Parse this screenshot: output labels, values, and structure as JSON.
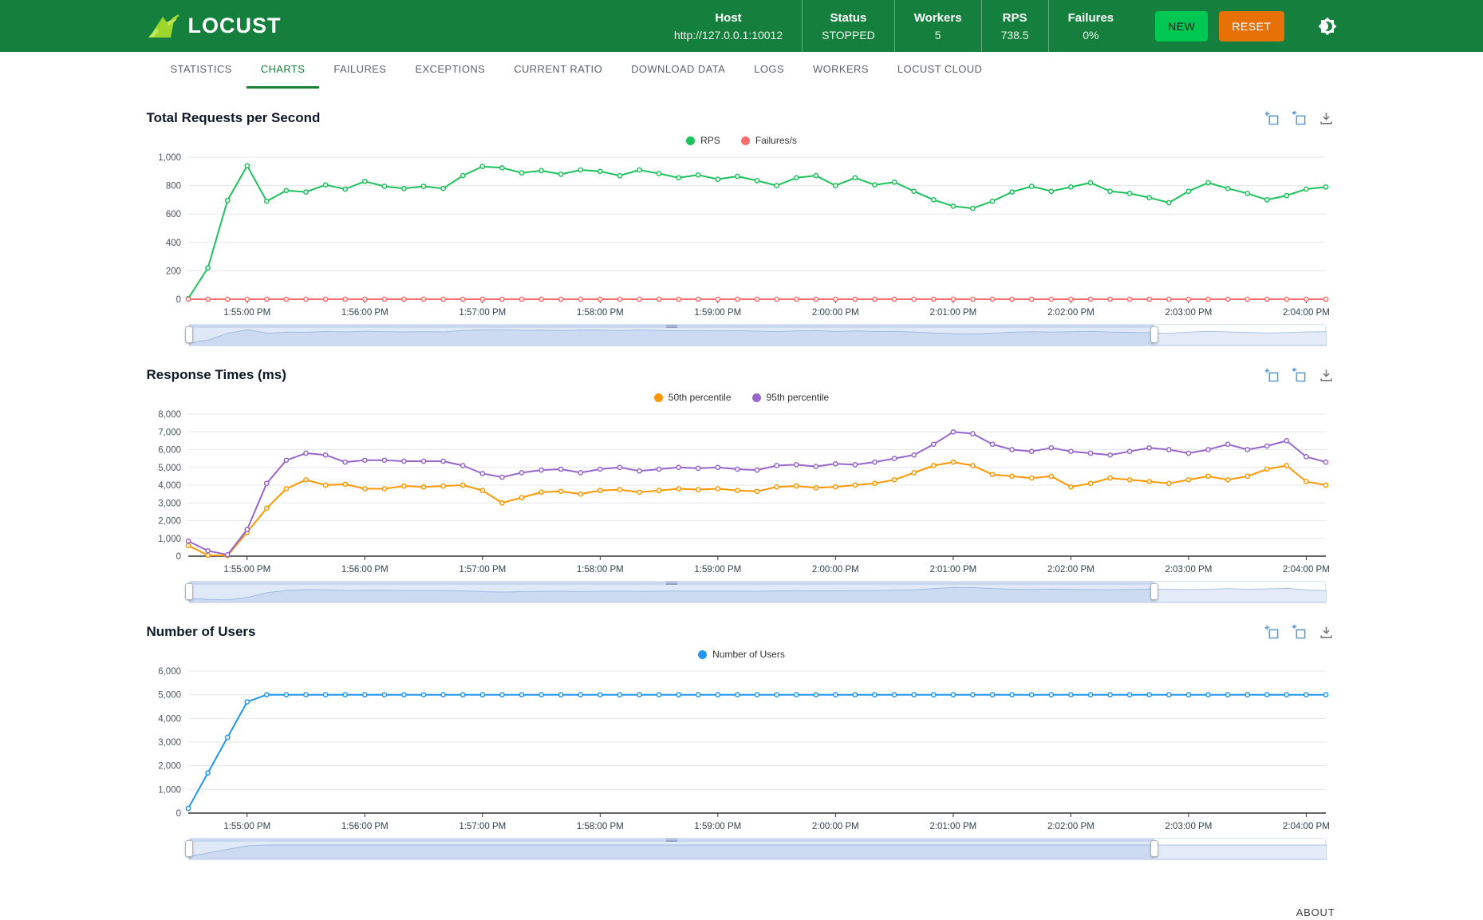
{
  "header": {
    "brand": "LOCUST",
    "stats": [
      {
        "label": "Host",
        "value": "http://127.0.0.1:10012"
      },
      {
        "label": "Status",
        "value": "STOPPED"
      },
      {
        "label": "Workers",
        "value": "5"
      },
      {
        "label": "RPS",
        "value": "738.5"
      },
      {
        "label": "Failures",
        "value": "0%"
      }
    ],
    "buttons": {
      "new_label": "NEW",
      "reset_label": "RESET"
    },
    "icons": {
      "theme_toggle": "dark-mode-brightness-icon",
      "logo": "locust-grasshopper-icon"
    },
    "colors": {
      "header_bg": "#15803D",
      "new_button": "#00C853",
      "reset_button": "#E87107",
      "logo_green": "#9FD62E"
    }
  },
  "tabs": {
    "items": [
      {
        "label": "STATISTICS",
        "active": false
      },
      {
        "label": "CHARTS",
        "active": true
      },
      {
        "label": "FAILURES",
        "active": false
      },
      {
        "label": "EXCEPTIONS",
        "active": false
      },
      {
        "label": "CURRENT RATIO",
        "active": false
      },
      {
        "label": "DOWNLOAD DATA",
        "active": false
      },
      {
        "label": "LOGS",
        "active": false
      },
      {
        "label": "WORKERS",
        "active": false
      },
      {
        "label": "LOCUST CLOUD",
        "active": false
      }
    ]
  },
  "toolbox": {
    "icons": [
      "zoom-select-icon",
      "zoom-restore-icon",
      "save-image-icon"
    ]
  },
  "footer": {
    "about_label": "ABOUT"
  },
  "chart_data": [
    {
      "type": "line",
      "title": "Total Requests per Second",
      "legend_position": "top-center",
      "grid": true,
      "ylim": [
        0,
        1000
      ],
      "yticks": [
        0,
        200,
        400,
        600,
        800,
        1000
      ],
      "x_tick_labels": [
        "1:55:00 PM",
        "1:56:00 PM",
        "1:57:00 PM",
        "1:58:00 PM",
        "1:59:00 PM",
        "2:00:00 PM",
        "2:01:00 PM",
        "2:02:00 PM",
        "2:03:00 PM",
        "2:04:00 PM"
      ],
      "x": [
        "1:54:30 PM",
        "1:54:40 PM",
        "1:54:50 PM",
        "1:55:00 PM",
        "1:55:10 PM",
        "1:55:20 PM",
        "1:55:30 PM",
        "1:55:40 PM",
        "1:55:50 PM",
        "1:56:00 PM",
        "1:56:10 PM",
        "1:56:20 PM",
        "1:56:30 PM",
        "1:56:40 PM",
        "1:56:50 PM",
        "1:57:00 PM",
        "1:57:10 PM",
        "1:57:20 PM",
        "1:57:30 PM",
        "1:57:40 PM",
        "1:57:50 PM",
        "1:58:00 PM",
        "1:58:10 PM",
        "1:58:20 PM",
        "1:58:30 PM",
        "1:58:40 PM",
        "1:58:50 PM",
        "1:59:00 PM",
        "1:59:10 PM",
        "1:59:20 PM",
        "1:59:30 PM",
        "1:59:40 PM",
        "1:59:50 PM",
        "2:00:00 PM",
        "2:00:10 PM",
        "2:00:20 PM",
        "2:00:30 PM",
        "2:00:40 PM",
        "2:00:50 PM",
        "2:01:00 PM",
        "2:01:10 PM",
        "2:01:20 PM",
        "2:01:30 PM",
        "2:01:40 PM",
        "2:01:50 PM",
        "2:02:00 PM",
        "2:02:10 PM",
        "2:02:20 PM",
        "2:02:30 PM",
        "2:02:40 PM",
        "2:02:50 PM",
        "2:03:00 PM",
        "2:03:10 PM",
        "2:03:20 PM",
        "2:03:30 PM",
        "2:03:40 PM",
        "2:03:50 PM",
        "2:04:00 PM",
        "2:04:10 PM"
      ],
      "series": [
        {
          "name": "RPS",
          "color": "#1CC35B",
          "values": [
            5,
            220,
            695,
            940,
            690,
            765,
            755,
            805,
            775,
            830,
            795,
            780,
            795,
            780,
            870,
            935,
            925,
            890,
            905,
            880,
            910,
            900,
            870,
            910,
            885,
            855,
            875,
            845,
            865,
            835,
            800,
            855,
            870,
            800,
            855,
            805,
            825,
            760,
            700,
            655,
            640,
            690,
            755,
            795,
            760,
            790,
            820,
            760,
            745,
            715,
            680,
            760,
            820,
            780,
            745,
            700,
            730,
            775,
            790
          ]
        },
        {
          "name": "Failures/s",
          "color": "#FF6D6D",
          "values": [
            0,
            0,
            0,
            0,
            0,
            0,
            0,
            0,
            0,
            0,
            0,
            0,
            0,
            0,
            0,
            0,
            0,
            0,
            0,
            0,
            0,
            0,
            0,
            0,
            0,
            0,
            0,
            0,
            0,
            0,
            0,
            0,
            0,
            0,
            0,
            0,
            0,
            0,
            0,
            0,
            0,
            0,
            0,
            0,
            0,
            0,
            0,
            0,
            0,
            0,
            0,
            0,
            0,
            0,
            0,
            0,
            0,
            0,
            0
          ]
        }
      ],
      "zoom_selection": {
        "start_percent": 0,
        "end_percent": 85
      }
    },
    {
      "type": "line",
      "title": "Response Times (ms)",
      "legend_position": "top-center",
      "grid": true,
      "ylim": [
        0,
        8000
      ],
      "yticks": [
        0,
        1000,
        2000,
        3000,
        4000,
        5000,
        6000,
        7000,
        8000
      ],
      "x_tick_labels": [
        "1:55:00 PM",
        "1:56:00 PM",
        "1:57:00 PM",
        "1:58:00 PM",
        "1:59:00 PM",
        "2:00:00 PM",
        "2:01:00 PM",
        "2:02:00 PM",
        "2:03:00 PM",
        "2:04:00 PM"
      ],
      "x": [
        "1:54:30 PM",
        "1:54:40 PM",
        "1:54:50 PM",
        "1:55:00 PM",
        "1:55:10 PM",
        "1:55:20 PM",
        "1:55:30 PM",
        "1:55:40 PM",
        "1:55:50 PM",
        "1:56:00 PM",
        "1:56:10 PM",
        "1:56:20 PM",
        "1:56:30 PM",
        "1:56:40 PM",
        "1:56:50 PM",
        "1:57:00 PM",
        "1:57:10 PM",
        "1:57:20 PM",
        "1:57:30 PM",
        "1:57:40 PM",
        "1:57:50 PM",
        "1:58:00 PM",
        "1:58:10 PM",
        "1:58:20 PM",
        "1:58:30 PM",
        "1:58:40 PM",
        "1:58:50 PM",
        "1:59:00 PM",
        "1:59:10 PM",
        "1:59:20 PM",
        "1:59:30 PM",
        "1:59:40 PM",
        "1:59:50 PM",
        "2:00:00 PM",
        "2:00:10 PM",
        "2:00:20 PM",
        "2:00:30 PM",
        "2:00:40 PM",
        "2:00:50 PM",
        "2:01:00 PM",
        "2:01:10 PM",
        "2:01:20 PM",
        "2:01:30 PM",
        "2:01:40 PM",
        "2:01:50 PM",
        "2:02:00 PM",
        "2:02:10 PM",
        "2:02:20 PM",
        "2:02:30 PM",
        "2:02:40 PM",
        "2:02:50 PM",
        "2:03:00 PM",
        "2:03:10 PM",
        "2:03:20 PM",
        "2:03:30 PM",
        "2:03:40 PM",
        "2:03:50 PM",
        "2:04:00 PM",
        "2:04:10 PM"
      ],
      "series": [
        {
          "name": "50th percentile",
          "color": "#FF9800",
          "values": [
            600,
            50,
            30,
            1350,
            2700,
            3800,
            4300,
            4000,
            4050,
            3800,
            3800,
            3950,
            3900,
            3950,
            4000,
            3700,
            3000,
            3300,
            3600,
            3650,
            3500,
            3700,
            3750,
            3600,
            3700,
            3800,
            3750,
            3800,
            3700,
            3650,
            3900,
            3950,
            3850,
            3900,
            4000,
            4100,
            4300,
            4700,
            5100,
            5300,
            5100,
            4600,
            4500,
            4400,
            4500,
            3900,
            4100,
            4400,
            4300,
            4200,
            4100,
            4300,
            4500,
            4300,
            4500,
            4900,
            5100,
            4200,
            4000
          ]
        },
        {
          "name": "95th percentile",
          "color": "#9966CC",
          "values": [
            850,
            300,
            80,
            1500,
            4100,
            5400,
            5800,
            5700,
            5300,
            5400,
            5400,
            5350,
            5350,
            5350,
            5100,
            4650,
            4450,
            4700,
            4850,
            4900,
            4700,
            4900,
            5000,
            4800,
            4900,
            5000,
            4950,
            5000,
            4900,
            4850,
            5100,
            5150,
            5050,
            5200,
            5150,
            5300,
            5500,
            5700,
            6300,
            7000,
            6900,
            6300,
            6000,
            5900,
            6100,
            5900,
            5800,
            5700,
            5900,
            6100,
            6000,
            5800,
            6000,
            6300,
            6000,
            6200,
            6500,
            5600,
            5300
          ]
        }
      ],
      "zoom_selection": {
        "start_percent": 0,
        "end_percent": 85
      }
    },
    {
      "type": "line",
      "title": "Number of Users",
      "legend_position": "top-center",
      "grid": true,
      "ylim": [
        0,
        6000
      ],
      "yticks": [
        0,
        1000,
        2000,
        3000,
        4000,
        5000,
        6000
      ],
      "x_tick_labels": [
        "1:55:00 PM",
        "1:56:00 PM",
        "1:57:00 PM",
        "1:58:00 PM",
        "1:59:00 PM",
        "2:00:00 PM",
        "2:01:00 PM",
        "2:02:00 PM",
        "2:03:00 PM",
        "2:04:00 PM"
      ],
      "x": [
        "1:54:30 PM",
        "1:54:40 PM",
        "1:54:50 PM",
        "1:55:00 PM",
        "1:55:10 PM",
        "1:55:20 PM",
        "1:55:30 PM",
        "1:55:40 PM",
        "1:55:50 PM",
        "1:56:00 PM",
        "1:56:10 PM",
        "1:56:20 PM",
        "1:56:30 PM",
        "1:56:40 PM",
        "1:56:50 PM",
        "1:57:00 PM",
        "1:57:10 PM",
        "1:57:20 PM",
        "1:57:30 PM",
        "1:57:40 PM",
        "1:57:50 PM",
        "1:58:00 PM",
        "1:58:10 PM",
        "1:58:20 PM",
        "1:58:30 PM",
        "1:58:40 PM",
        "1:58:50 PM",
        "1:59:00 PM",
        "1:59:10 PM",
        "1:59:20 PM",
        "1:59:30 PM",
        "1:59:40 PM",
        "1:59:50 PM",
        "2:00:00 PM",
        "2:00:10 PM",
        "2:00:20 PM",
        "2:00:30 PM",
        "2:00:40 PM",
        "2:00:50 PM",
        "2:01:00 PM",
        "2:01:10 PM",
        "2:01:20 PM",
        "2:01:30 PM",
        "2:01:40 PM",
        "2:01:50 PM",
        "2:02:00 PM",
        "2:02:10 PM",
        "2:02:20 PM",
        "2:02:30 PM",
        "2:02:40 PM",
        "2:02:50 PM",
        "2:03:00 PM",
        "2:03:10 PM",
        "2:03:20 PM",
        "2:03:30 PM",
        "2:03:40 PM",
        "2:03:50 PM",
        "2:04:00 PM",
        "2:04:10 PM"
      ],
      "series": [
        {
          "name": "Number of Users",
          "color": "#2196F3",
          "values": [
            200,
            1700,
            3200,
            4700,
            5000,
            5000,
            5000,
            5000,
            5000,
            5000,
            5000,
            5000,
            5000,
            5000,
            5000,
            5000,
            5000,
            5000,
            5000,
            5000,
            5000,
            5000,
            5000,
            5000,
            5000,
            5000,
            5000,
            5000,
            5000,
            5000,
            5000,
            5000,
            5000,
            5000,
            5000,
            5000,
            5000,
            5000,
            5000,
            5000,
            5000,
            5000,
            5000,
            5000,
            5000,
            5000,
            5000,
            5000,
            5000,
            5000,
            5000,
            5000,
            5000,
            5000,
            5000,
            5000,
            5000,
            5000,
            5000
          ]
        }
      ],
      "zoom_selection": {
        "start_percent": 0,
        "end_percent": 85
      }
    }
  ]
}
